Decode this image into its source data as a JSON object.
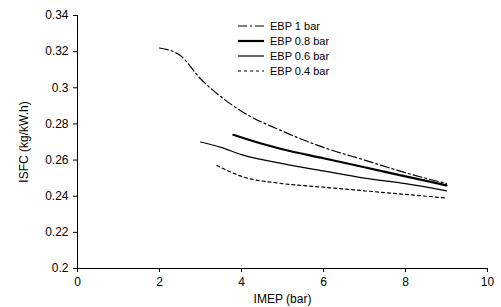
{
  "chart_data": {
    "type": "line",
    "x_label": "IMEP (bar)",
    "y_label": "ISFC (kg/kW.h)",
    "xlim": [
      0,
      10
    ],
    "xticks": [
      0,
      2,
      4,
      6,
      8,
      10
    ],
    "ylim": [
      0.2,
      0.34
    ],
    "yticks": [
      0.2,
      0.22,
      0.24,
      0.26,
      0.28,
      0.3,
      0.32,
      0.34
    ],
    "grid": false,
    "legend": "upper left",
    "series": [
      {
        "name": "EBP 1 bar",
        "color": "#000000",
        "line_style": "dashdot",
        "x": [
          2.0,
          2.5,
          3.0,
          3.5,
          4.0,
          5.0,
          6.0,
          7.0,
          8.0,
          9.0
        ],
        "values": [
          0.322,
          0.318,
          0.305,
          0.295,
          0.287,
          0.276,
          0.267,
          0.26,
          0.253,
          0.247
        ]
      },
      {
        "name": "EBP 0.8 bar",
        "color": "#000000",
        "line_style": "solid",
        "x": [
          3.8,
          4.5,
          5.0,
          6.0,
          7.0,
          8.0,
          9.0
        ],
        "values": [
          0.274,
          0.269,
          0.266,
          0.261,
          0.256,
          0.251,
          0.246
        ]
      },
      {
        "name": "EBP 0.6 bar",
        "color": "#000000",
        "line_style": "solid",
        "x": [
          3.0,
          3.5,
          4.0,
          5.0,
          6.0,
          7.0,
          8.0,
          9.0
        ],
        "values": [
          0.27,
          0.267,
          0.263,
          0.258,
          0.254,
          0.25,
          0.247,
          0.243
        ]
      },
      {
        "name": "EBP 0.4 bar",
        "color": "#000000",
        "line_style": "dashed",
        "x": [
          3.4,
          4.0,
          5.0,
          6.0,
          7.0,
          8.0,
          9.0
        ],
        "values": [
          0.257,
          0.251,
          0.247,
          0.245,
          0.243,
          0.241,
          0.239
        ]
      }
    ]
  }
}
